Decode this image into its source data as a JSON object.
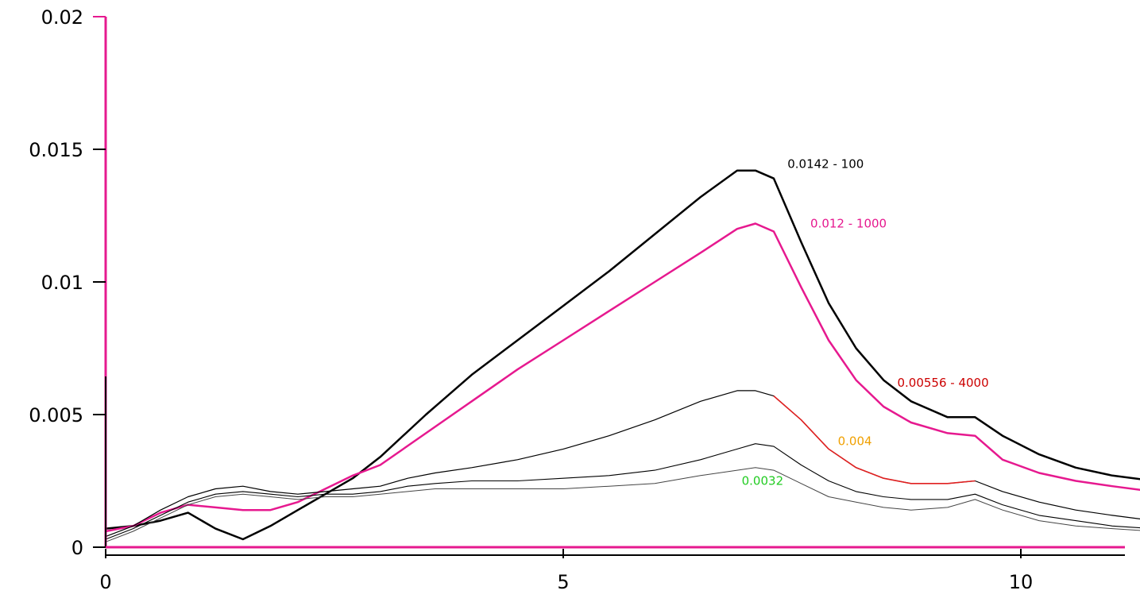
{
  "chart_data": {
    "type": "line",
    "title": "",
    "xlabel": "",
    "ylabel": "",
    "xlim": [
      0,
      11.45
    ],
    "ylim": [
      0,
      0.02
    ],
    "grid": false,
    "legend": "none",
    "x_ticks": [
      0,
      5,
      10
    ],
    "x_tick_labels": [
      "0",
      "5",
      "10"
    ],
    "y_ticks": [
      0,
      0.005,
      0.01,
      0.015,
      0.02
    ],
    "y_tick_labels": [
      "0",
      "0.005",
      "0.01",
      "0.015",
      "0.02"
    ],
    "axis_color": "#e6198f",
    "series": [
      {
        "color": "#000000",
        "width": 2.5,
        "x": [
          0,
          0.3,
          0.6,
          0.9,
          1.2,
          1.5,
          1.8,
          2.1,
          2.4,
          2.7,
          3.0,
          3.5,
          4.0,
          4.5,
          5.0,
          5.5,
          6.0,
          6.5,
          6.9,
          7.1,
          7.3,
          7.6,
          7.9,
          8.2,
          8.5,
          8.8,
          9.2,
          9.5,
          9.8,
          10.2,
          10.6,
          11.0,
          11.45
        ],
        "y": [
          0.0007,
          0.0008,
          0.001,
          0.0013,
          0.0007,
          0.0003,
          0.0008,
          0.0014,
          0.002,
          0.0026,
          0.0034,
          0.005,
          0.0065,
          0.0078,
          0.0091,
          0.0104,
          0.0118,
          0.0132,
          0.0142,
          0.0142,
          0.0139,
          0.0115,
          0.0092,
          0.0075,
          0.0063,
          0.0055,
          0.0049,
          0.0049,
          0.0042,
          0.0035,
          0.003,
          0.0027,
          0.0025
        ]
      },
      {
        "color": "#e6198f",
        "width": 2.5,
        "x": [
          0,
          0.3,
          0.6,
          0.9,
          1.2,
          1.5,
          1.8,
          2.1,
          2.4,
          2.7,
          3.0,
          3.5,
          4.0,
          4.5,
          5.0,
          5.5,
          6.0,
          6.5,
          6.9,
          7.1,
          7.3,
          7.6,
          7.9,
          8.2,
          8.5,
          8.8,
          9.2,
          9.5,
          9.8,
          10.2,
          10.6,
          11.0,
          11.45
        ],
        "y": [
          0.0006,
          0.0008,
          0.0013,
          0.0016,
          0.0015,
          0.0014,
          0.0014,
          0.0017,
          0.0022,
          0.0027,
          0.0031,
          0.0043,
          0.0055,
          0.0067,
          0.0078,
          0.0089,
          0.01,
          0.0111,
          0.012,
          0.0122,
          0.0119,
          0.0098,
          0.0078,
          0.0063,
          0.0053,
          0.0047,
          0.0043,
          0.0042,
          0.0033,
          0.0028,
          0.0025,
          0.0023,
          0.0021
        ]
      },
      {
        "color": "#000000",
        "width": 1.2,
        "x": [
          0,
          0.3,
          0.6,
          0.9,
          1.2,
          1.5,
          1.8,
          2.1,
          2.4,
          2.7,
          3.0,
          3.3,
          3.6,
          4.0,
          4.5,
          5.0,
          5.5,
          6.0,
          6.5,
          6.9,
          7.1,
          7.3,
          7.6,
          7.9,
          8.2,
          8.5,
          8.8,
          9.2,
          9.5,
          9.8,
          10.2,
          10.6,
          11.0,
          11.45
        ],
        "y": [
          0.0004,
          0.0008,
          0.0014,
          0.0019,
          0.0022,
          0.0023,
          0.0021,
          0.002,
          0.0021,
          0.0022,
          0.0023,
          0.0026,
          0.0028,
          0.003,
          0.0033,
          0.0037,
          0.0042,
          0.0048,
          0.0055,
          0.0059,
          0.0059,
          0.0057,
          0.0048,
          0.0037,
          0.003,
          0.0026,
          0.0024,
          0.0024,
          0.0025,
          0.0021,
          0.0017,
          0.0014,
          0.0012,
          0.001
        ],
        "highlight": {
          "color": "#e02020",
          "x_from": 7.3,
          "x_to": 9.6
        }
      },
      {
        "color": "#000000",
        "width": 1.1,
        "x": [
          0,
          0.3,
          0.6,
          0.9,
          1.2,
          1.5,
          1.8,
          2.1,
          2.4,
          2.7,
          3.0,
          3.3,
          3.6,
          4.0,
          4.5,
          5.0,
          5.5,
          6.0,
          6.5,
          6.9,
          7.1,
          7.3,
          7.6,
          7.9,
          8.2,
          8.5,
          8.8,
          9.2,
          9.5,
          9.8,
          10.2,
          10.6,
          11.0,
          11.45
        ],
        "y": [
          0.0003,
          0.0007,
          0.0012,
          0.0017,
          0.002,
          0.0021,
          0.002,
          0.0019,
          0.002,
          0.002,
          0.0021,
          0.0023,
          0.0024,
          0.0025,
          0.0025,
          0.0026,
          0.0027,
          0.0029,
          0.0033,
          0.0037,
          0.0039,
          0.0038,
          0.0031,
          0.0025,
          0.0021,
          0.0019,
          0.0018,
          0.0018,
          0.002,
          0.0016,
          0.0012,
          0.001,
          0.0008,
          0.0007
        ]
      },
      {
        "color": "#444444",
        "width": 1.0,
        "x": [
          0,
          0.3,
          0.6,
          0.9,
          1.2,
          1.5,
          1.8,
          2.1,
          2.4,
          2.7,
          3.0,
          3.3,
          3.6,
          4.0,
          4.5,
          5.0,
          5.5,
          6.0,
          6.5,
          6.9,
          7.1,
          7.3,
          7.6,
          7.9,
          8.2,
          8.5,
          8.8,
          9.2,
          9.5,
          9.8,
          10.2,
          10.6,
          11.0,
          11.45
        ],
        "y": [
          0.0002,
          0.0006,
          0.0011,
          0.0016,
          0.0019,
          0.002,
          0.0019,
          0.0018,
          0.0019,
          0.0019,
          0.002,
          0.0021,
          0.0022,
          0.0022,
          0.0022,
          0.0022,
          0.0023,
          0.0024,
          0.0027,
          0.0029,
          0.003,
          0.0029,
          0.0024,
          0.0019,
          0.0017,
          0.0015,
          0.0014,
          0.0015,
          0.0018,
          0.0014,
          0.001,
          0.0008,
          0.0007,
          0.0006
        ]
      }
    ],
    "annotations": [
      {
        "text": "0.0142 - 100",
        "color": "#000000",
        "x": 7.45,
        "y": 0.0143
      },
      {
        "text": "0.012 - 1000",
        "color": "#e6198f",
        "x": 7.7,
        "y": 0.01205
      },
      {
        "text": "0.00556 - 4000",
        "color": "#cc0000",
        "x": 8.65,
        "y": 0.00605
      },
      {
        "text": "0.004",
        "color": "#f0a000",
        "x": 8.0,
        "y": 0.00385
      },
      {
        "text": "0.0032",
        "color": "#22cc22",
        "x": 6.95,
        "y": 0.00235
      }
    ]
  }
}
